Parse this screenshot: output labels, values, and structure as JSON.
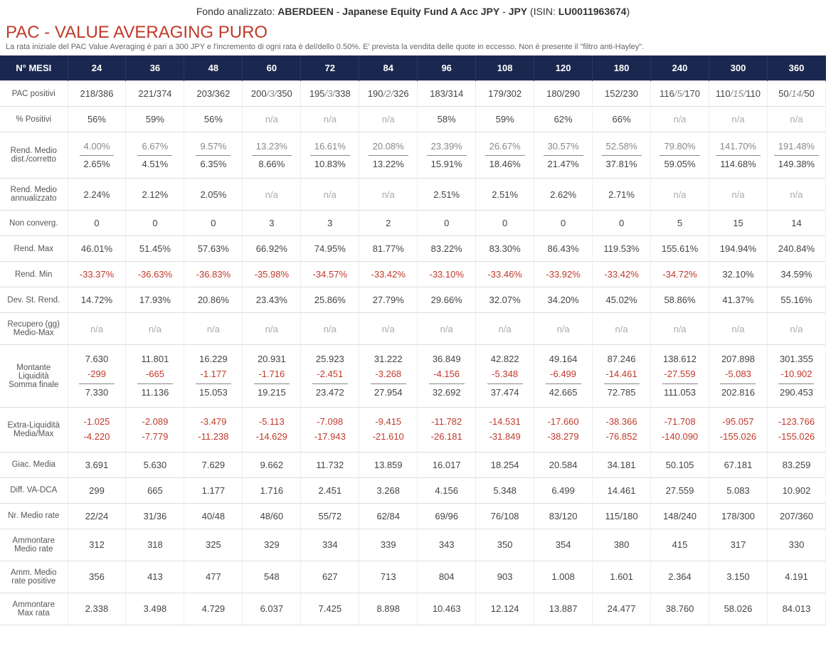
{
  "header": {
    "prefix": "Fondo analizzato: ",
    "company": "ABERDEEN",
    "sep1": " - ",
    "fund": "Japanese Equity Fund A Acc JPY",
    "sep2": " - ",
    "currency": "JPY",
    "isin_label": " (ISIN: ",
    "isin": "LU0011963674",
    "isin_close": ")"
  },
  "title": "PAC - VALUE AVERAGING PURO",
  "subtitle": "La rata iniziale del PAC Value Averaging è pari a 300 JPY e l'incremento di ogni rata è del/dello 0.50%. E' prevista la vendita delle quote in eccesso. Non è presente il \"filtro anti-Hayley\".",
  "columns_label": "N° MESI",
  "columns": [
    "24",
    "36",
    "48",
    "60",
    "72",
    "84",
    "96",
    "108",
    "120",
    "180",
    "240",
    "300",
    "360"
  ],
  "rows": [
    {
      "label": "PAC positivi",
      "type": "frac",
      "cells": [
        {
          "text": "218/386"
        },
        {
          "text": "221/374"
        },
        {
          "text": "203/362"
        },
        {
          "a": "200",
          "b": "3",
          "c": "350"
        },
        {
          "a": "195",
          "b": "3",
          "c": "338"
        },
        {
          "a": "190",
          "b": "2",
          "c": "326"
        },
        {
          "text": "183/314"
        },
        {
          "text": "179/302"
        },
        {
          "text": "180/290"
        },
        {
          "text": "152/230"
        },
        {
          "a": "116",
          "b": "5",
          "c": "170"
        },
        {
          "a": "110",
          "b": "15",
          "c": "110"
        },
        {
          "a": "50",
          "b": "14",
          "c": "50"
        }
      ]
    },
    {
      "label": "% Positivi",
      "type": "simple",
      "cells": [
        "56%",
        "59%",
        "56%",
        "n/a",
        "n/a",
        "n/a",
        "58%",
        "59%",
        "62%",
        "66%",
        "n/a",
        "n/a",
        "n/a"
      ]
    },
    {
      "label": "Rend. Medio dist./corretto",
      "type": "split",
      "cells": [
        {
          "top": "4.00%",
          "bot": "2.65%"
        },
        {
          "top": "6.67%",
          "bot": "4.51%"
        },
        {
          "top": "9.57%",
          "bot": "6.35%"
        },
        {
          "top": "13.23%",
          "bot": "8.66%"
        },
        {
          "top": "16.61%",
          "bot": "10.83%"
        },
        {
          "top": "20.08%",
          "bot": "13.22%"
        },
        {
          "top": "23.39%",
          "bot": "15.91%"
        },
        {
          "top": "26.67%",
          "bot": "18.46%"
        },
        {
          "top": "30.57%",
          "bot": "21.47%"
        },
        {
          "top": "52.58%",
          "bot": "37.81%"
        },
        {
          "top": "79.80%",
          "bot": "59.05%"
        },
        {
          "top": "141.70%",
          "bot": "114.68%"
        },
        {
          "top": "191.48%",
          "bot": "149.38%"
        }
      ]
    },
    {
      "label": "Rend. Medio annualizzato",
      "type": "simple",
      "cells": [
        "2.24%",
        "2.12%",
        "2.05%",
        "n/a",
        "n/a",
        "n/a",
        "2.51%",
        "2.51%",
        "2.62%",
        "2.71%",
        "n/a",
        "n/a",
        "n/a"
      ]
    },
    {
      "label": "Non converg.",
      "type": "simple",
      "cells": [
        "0",
        "0",
        "0",
        "3",
        "3",
        "2",
        "0",
        "0",
        "0",
        "0",
        "5",
        "15",
        "14"
      ]
    },
    {
      "label": "Rend. Max",
      "type": "simple",
      "cells": [
        "46.01%",
        "51.45%",
        "57.63%",
        "66.92%",
        "74.95%",
        "81.77%",
        "83.22%",
        "83.30%",
        "86.43%",
        "119.53%",
        "155.61%",
        "194.94%",
        "240.84%"
      ]
    },
    {
      "label": "Rend. Min",
      "type": "simple",
      "cells": [
        "-33.37%",
        "-36.63%",
        "-36.83%",
        "-35.98%",
        "-34.57%",
        "-33.42%",
        "-33.10%",
        "-33.46%",
        "-33.92%",
        "-33.42%",
        "-34.72%",
        "32.10%",
        "34.59%"
      ]
    },
    {
      "label": "Dev. St. Rend.",
      "type": "simple",
      "cells": [
        "14.72%",
        "17.93%",
        "20.86%",
        "23.43%",
        "25.86%",
        "27.79%",
        "29.66%",
        "32.07%",
        "34.20%",
        "45.02%",
        "58.86%",
        "41.37%",
        "55.16%"
      ]
    },
    {
      "label": "Recupero (gg) Medio-Max",
      "type": "simple",
      "cells": [
        "n/a",
        "n/a",
        "n/a",
        "n/a",
        "n/a",
        "n/a",
        "n/a",
        "n/a",
        "n/a",
        "n/a",
        "n/a",
        "n/a",
        "n/a"
      ]
    },
    {
      "label": "Montante Liquidità Somma finale",
      "type": "triple",
      "cells": [
        {
          "v1": "7.630",
          "v2": "-299",
          "v3": "7.330"
        },
        {
          "v1": "11.801",
          "v2": "-665",
          "v3": "11.136"
        },
        {
          "v1": "16.229",
          "v2": "-1.177",
          "v3": "15.053"
        },
        {
          "v1": "20.931",
          "v2": "-1.716",
          "v3": "19.215"
        },
        {
          "v1": "25.923",
          "v2": "-2.451",
          "v3": "23.472"
        },
        {
          "v1": "31.222",
          "v2": "-3.268",
          "v3": "27.954"
        },
        {
          "v1": "36.849",
          "v2": "-4.156",
          "v3": "32.692"
        },
        {
          "v1": "42.822",
          "v2": "-5.348",
          "v3": "37.474"
        },
        {
          "v1": "49.164",
          "v2": "-6.499",
          "v3": "42.665"
        },
        {
          "v1": "87.246",
          "v2": "-14.461",
          "v3": "72.785"
        },
        {
          "v1": "138.612",
          "v2": "-27.559",
          "v3": "111.053"
        },
        {
          "v1": "207.898",
          "v2": "-5.083",
          "v3": "202.816"
        },
        {
          "v1": "301.355",
          "v2": "-10.902",
          "v3": "290.453"
        }
      ]
    },
    {
      "label": "Extra-Liquidità Media/Max",
      "type": "double-neg",
      "cells": [
        {
          "v1": "-1.025",
          "v2": "-4.220"
        },
        {
          "v1": "-2.089",
          "v2": "-7.779"
        },
        {
          "v1": "-3.479",
          "v2": "-11.238"
        },
        {
          "v1": "-5.113",
          "v2": "-14.629"
        },
        {
          "v1": "-7.098",
          "v2": "-17.943"
        },
        {
          "v1": "-9.415",
          "v2": "-21.610"
        },
        {
          "v1": "-11.782",
          "v2": "-26.181"
        },
        {
          "v1": "-14.531",
          "v2": "-31.849"
        },
        {
          "v1": "-17.660",
          "v2": "-38.279"
        },
        {
          "v1": "-38.366",
          "v2": "-76.852"
        },
        {
          "v1": "-71.708",
          "v2": "-140.090"
        },
        {
          "v1": "-95.057",
          "v2": "-155.026"
        },
        {
          "v1": "-123.766",
          "v2": "-155.026"
        }
      ]
    },
    {
      "label": "Giac. Media",
      "type": "simple",
      "cells": [
        "3.691",
        "5.630",
        "7.629",
        "9.662",
        "11.732",
        "13.859",
        "16.017",
        "18.254",
        "20.584",
        "34.181",
        "50.105",
        "67.181",
        "83.259"
      ]
    },
    {
      "label": "Diff. VA-DCA",
      "type": "simple",
      "cells": [
        "299",
        "665",
        "1.177",
        "1.716",
        "2.451",
        "3.268",
        "4.156",
        "5.348",
        "6.499",
        "14.461",
        "27.559",
        "5.083",
        "10.902"
      ]
    },
    {
      "label": "Nr. Medio rate",
      "type": "simple",
      "cells": [
        "22/24",
        "31/36",
        "40/48",
        "48/60",
        "55/72",
        "62/84",
        "69/96",
        "76/108",
        "83/120",
        "115/180",
        "148/240",
        "178/300",
        "207/360"
      ]
    },
    {
      "label": "Ammontare Medio rate",
      "type": "simple",
      "cells": [
        "312",
        "318",
        "325",
        "329",
        "334",
        "339",
        "343",
        "350",
        "354",
        "380",
        "415",
        "317",
        "330"
      ]
    },
    {
      "label": "Amm. Medio rate positive",
      "type": "simple",
      "cells": [
        "356",
        "413",
        "477",
        "548",
        "627",
        "713",
        "804",
        "903",
        "1.008",
        "1.601",
        "2.364",
        "3.150",
        "4.191"
      ]
    },
    {
      "label": "Ammontare Max rata",
      "type": "simple",
      "cells": [
        "2.338",
        "3.498",
        "4.729",
        "6.037",
        "7.425",
        "8.898",
        "10.463",
        "12.124",
        "13.887",
        "24.477",
        "38.760",
        "58.026",
        "84.013"
      ]
    }
  ]
}
